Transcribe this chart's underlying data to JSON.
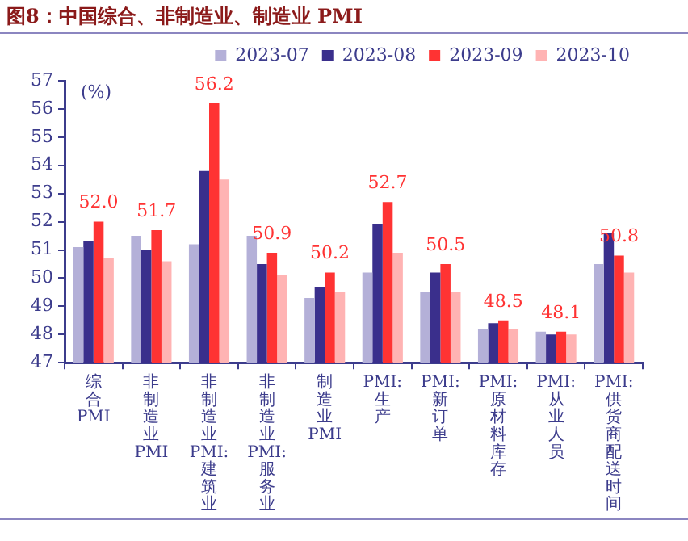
{
  "chart_data": {
    "type": "bar",
    "title": "图8：中国综合、非制造业、制造业 PMI",
    "ylabel": "(%)",
    "categories": [
      "综合PMI",
      "非制造业PMI",
      "非制造业PMI:建筑业",
      "非制造业PMI:服务业",
      "制造业PMI",
      "PMI:生产",
      "PMI:新订单",
      "PMI:原材料库存",
      "PMI:从业人员",
      "PMI:供货商配送时间"
    ],
    "series": [
      {
        "name": "2023-07",
        "color": "#b4b0d8",
        "values": [
          51.1,
          51.5,
          51.2,
          51.5,
          49.3,
          50.2,
          49.5,
          48.2,
          48.1,
          50.5
        ]
      },
      {
        "name": "2023-08",
        "color": "#3a2f8c",
        "values": [
          51.3,
          51.0,
          53.8,
          50.5,
          49.7,
          51.9,
          50.2,
          48.4,
          48.0,
          51.6
        ]
      },
      {
        "name": "2023-09",
        "color": "#ff3333",
        "values": [
          52.0,
          51.7,
          56.2,
          50.9,
          50.2,
          52.7,
          50.5,
          48.5,
          48.1,
          50.8
        ],
        "value_labels": [
          "52.0",
          "51.7",
          "56.2",
          "50.9",
          "50.2",
          "52.7",
          "50.5",
          "48.5",
          "48.1",
          "50.8"
        ]
      },
      {
        "name": "2023-10",
        "color": "#ffb3b3",
        "values": [
          50.7,
          50.6,
          53.5,
          50.1,
          49.5,
          50.9,
          49.5,
          48.2,
          48.0,
          50.2
        ]
      }
    ],
    "ylim": [
      47,
      57
    ],
    "yticks": [
      47,
      48,
      49,
      50,
      51,
      52,
      53,
      54,
      55,
      56,
      57
    ],
    "legend": "top right"
  }
}
